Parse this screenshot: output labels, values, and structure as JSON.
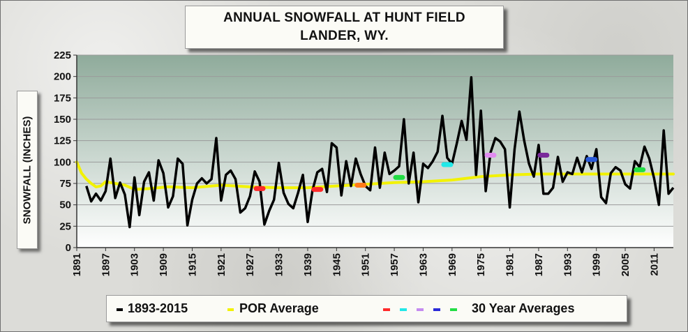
{
  "title": {
    "line1": "ANNUAL SNOWFALL AT HUNT FIELD",
    "line2": "LANDER, WY."
  },
  "legend": {
    "annual": "1893-2015",
    "por": "POR Average",
    "avg30": "30 Year Averages"
  },
  "colors": {
    "annual": "#000000",
    "por": "#f2f200",
    "avg30": [
      "#ff2a2a",
      "#22e8e8",
      "#c58bf0",
      "#2a2ad8",
      "#22dd44"
    ],
    "plot_top": "#8fab9b",
    "plot_bottom": "#ffffff"
  },
  "chart_data": {
    "type": "line",
    "title": "ANNUAL SNOWFALL AT HUNT FIELD LANDER, WY.",
    "xlabel": "",
    "ylabel": "SNOWFALL (INCHES)",
    "ylim": [
      0,
      225
    ],
    "xlim": [
      1891,
      2015
    ],
    "yticks": [
      0,
      25,
      50,
      75,
      100,
      125,
      150,
      175,
      200,
      225
    ],
    "xticks": [
      1891,
      1897,
      1903,
      1909,
      1915,
      1921,
      1927,
      1933,
      1939,
      1945,
      1951,
      1957,
      1963,
      1969,
      1975,
      1981,
      1987,
      1993,
      1999,
      2005,
      2011
    ],
    "grid": "horizontal",
    "legend_position": "bottom",
    "series": [
      {
        "name": "1893-2015",
        "x": [
          1893,
          1894,
          1895,
          1896,
          1897,
          1898,
          1899,
          1900,
          1901,
          1902,
          1903,
          1904,
          1905,
          1906,
          1907,
          1908,
          1909,
          1910,
          1911,
          1912,
          1913,
          1914,
          1915,
          1916,
          1917,
          1918,
          1919,
          1920,
          1921,
          1922,
          1923,
          1924,
          1925,
          1926,
          1927,
          1928,
          1929,
          1930,
          1931,
          1932,
          1933,
          1934,
          1935,
          1936,
          1937,
          1938,
          1939,
          1940,
          1941,
          1942,
          1943,
          1944,
          1945,
          1946,
          1947,
          1948,
          1949,
          1950,
          1951,
          1952,
          1953,
          1954,
          1955,
          1956,
          1957,
          1958,
          1959,
          1960,
          1961,
          1962,
          1963,
          1964,
          1965,
          1966,
          1967,
          1968,
          1969,
          1970,
          1971,
          1972,
          1973,
          1974,
          1975,
          1976,
          1977,
          1978,
          1979,
          1980,
          1981,
          1982,
          1983,
          1984,
          1985,
          1986,
          1987,
          1988,
          1989,
          1990,
          1991,
          1992,
          1993,
          1994,
          1995,
          1996,
          1997,
          1998,
          1999,
          2000,
          2001,
          2002,
          2003,
          2004,
          2005,
          2006,
          2007,
          2008,
          2009,
          2010,
          2011,
          2012,
          2013,
          2014,
          2015
        ],
        "values": [
          72,
          54,
          63,
          55,
          66,
          104,
          58,
          76,
          62,
          24,
          82,
          38,
          77,
          88,
          55,
          102,
          87,
          47,
          60,
          104,
          98,
          26,
          56,
          75,
          81,
          75,
          80,
          128,
          55,
          85,
          90,
          80,
          41,
          46,
          60,
          89,
          77,
          27,
          43,
          56,
          99,
          64,
          51,
          46,
          64,
          85,
          30,
          67,
          88,
          92,
          65,
          122,
          117,
          61,
          101,
          72,
          104,
          86,
          72,
          67,
          117,
          70,
          111,
          86,
          90,
          95,
          150,
          75,
          111,
          53,
          98,
          93,
          101,
          112,
          154,
          105,
          98,
          122,
          148,
          126,
          199,
          85,
          160,
          66,
          111,
          128,
          124,
          115,
          47,
          115,
          159,
          125,
          98,
          83,
          120,
          63,
          63,
          70,
          106,
          77,
          88,
          86,
          105,
          88,
          107,
          92,
          115,
          59,
          52,
          87,
          94,
          90,
          74,
          69,
          101,
          94,
          118,
          104,
          81,
          50,
          137,
          63,
          70
        ]
      },
      {
        "name": "POR Average",
        "x": [
          1891,
          1892,
          1893,
          1894,
          1895,
          1896,
          1897,
          1899,
          1901,
          1903,
          1906,
          1910,
          1915,
          1921,
          1927,
          1933,
          1939,
          1945,
          1951,
          1957,
          1963,
          1969,
          1975,
          1981,
          1987,
          1993,
          1999,
          2005,
          2011,
          2015
        ],
        "values": [
          100,
          87,
          80,
          75,
          71,
          72,
          77,
          75,
          73,
          68,
          69,
          71,
          70,
          73,
          71,
          70,
          70,
          72,
          74,
          76,
          77,
          79,
          83,
          85,
          86,
          86,
          86,
          86,
          86,
          86
        ]
      }
    ],
    "thirty_year_averages": [
      {
        "x": 1929,
        "value": 69,
        "color": "#ff2a2a"
      },
      {
        "x": 1941,
        "value": 68,
        "color": "#ff2a2a"
      },
      {
        "x": 1950,
        "value": 73,
        "color": "#ff7a1a"
      },
      {
        "x": 1958,
        "value": 82,
        "color": "#22dd44"
      },
      {
        "x": 1968,
        "value": 97,
        "color": "#22e8e8"
      },
      {
        "x": 1977,
        "value": 108,
        "color": "#e08cf0"
      },
      {
        "x": 1988,
        "value": 108,
        "color": "#7a2a9a"
      },
      {
        "x": 1998,
        "value": 103,
        "color": "#2a5ad8"
      },
      {
        "x": 2008,
        "value": 91,
        "color": "#22dd44"
      }
    ]
  }
}
